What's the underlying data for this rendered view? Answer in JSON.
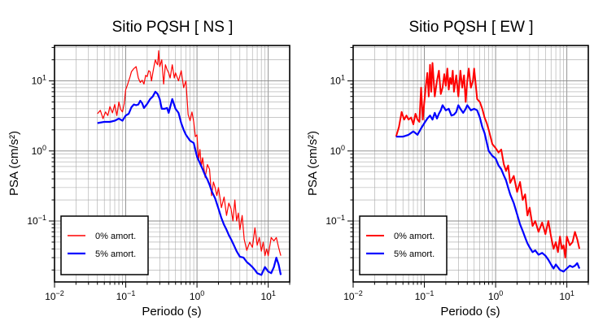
{
  "chart_data": [
    {
      "type": "line",
      "title": "Sitio PQSH [ NS ]",
      "xlabel": "Periodo (s)",
      "ylabel": "PSA (cm/s²)",
      "xscale": "log",
      "yscale": "log",
      "xlim": [
        0.01,
        20
      ],
      "ylim": [
        0.0135,
        32
      ],
      "x_ticks": [
        {
          "value": 0.01,
          "base": "10",
          "exp": "−2"
        },
        {
          "value": 0.1,
          "base": "10",
          "exp": "−1"
        },
        {
          "value": 1,
          "base": "10",
          "exp": "0"
        },
        {
          "value": 10,
          "base": "10",
          "exp": "1"
        }
      ],
      "y_ticks": [
        {
          "value": 0.1,
          "base": "10",
          "exp": "−1"
        },
        {
          "value": 1,
          "base": "10",
          "exp": "0"
        },
        {
          "value": 10,
          "base": "10",
          "exp": "1"
        }
      ],
      "grid": true,
      "legend_position": "bottom-left",
      "series": [
        {
          "name": "0% amort.",
          "color": "#ff0000",
          "width": 1.2,
          "x": [
            0.04,
            0.044,
            0.048,
            0.052,
            0.056,
            0.06,
            0.065,
            0.07,
            0.075,
            0.08,
            0.085,
            0.09,
            0.095,
            0.1,
            0.105,
            0.11,
            0.115,
            0.12,
            0.13,
            0.14,
            0.15,
            0.16,
            0.17,
            0.18,
            0.19,
            0.2,
            0.21,
            0.22,
            0.23,
            0.24,
            0.25,
            0.26,
            0.27,
            0.28,
            0.29,
            0.3,
            0.32,
            0.34,
            0.36,
            0.38,
            0.4,
            0.42,
            0.45,
            0.48,
            0.5,
            0.55,
            0.6,
            0.65,
            0.7,
            0.75,
            0.8,
            0.85,
            0.9,
            0.95,
            1.0,
            1.05,
            1.1,
            1.15,
            1.2,
            1.3,
            1.4,
            1.5,
            1.6,
            1.7,
            1.8,
            1.9,
            2.0,
            2.2,
            2.4,
            2.6,
            2.8,
            3.0,
            3.2,
            3.4,
            3.6,
            3.8,
            4.0,
            4.3,
            4.6,
            5.0,
            5.5,
            6.0,
            6.5,
            7.0,
            7.5,
            8.0,
            8.5,
            9.0,
            9.5,
            10,
            11,
            12,
            13,
            14,
            15
          ],
          "y": [
            3.4,
            3.8,
            2.9,
            3.6,
            3.2,
            4.3,
            3.5,
            4.6,
            3.2,
            5.0,
            3.9,
            3.6,
            4.7,
            7.5,
            8.6,
            10.0,
            11.5,
            13.5,
            15.0,
            16.0,
            11.0,
            9.5,
            10.2,
            9.0,
            12.0,
            11.5,
            14.0,
            13.5,
            10.0,
            13.0,
            16.5,
            20.0,
            18.0,
            17.0,
            27.0,
            16.0,
            20.0,
            9.0,
            17.0,
            14.5,
            13.0,
            11.0,
            17.0,
            11.0,
            13.0,
            10.0,
            14.0,
            8.0,
            10.0,
            3.3,
            2.7,
            3.6,
            2.6,
            1.6,
            1.7,
            0.75,
            1.05,
            0.6,
            0.8,
            0.42,
            0.64,
            0.55,
            0.23,
            0.36,
            0.3,
            0.23,
            0.3,
            0.155,
            0.22,
            0.12,
            0.18,
            0.15,
            0.1,
            0.2,
            0.1,
            0.13,
            0.075,
            0.12,
            0.055,
            0.038,
            0.05,
            0.042,
            0.08,
            0.045,
            0.058,
            0.037,
            0.05,
            0.032,
            0.04,
            0.032,
            0.058,
            0.052,
            0.058,
            0.042,
            0.032
          ]
        },
        {
          "name": "5% amort.",
          "color": "#0000ff",
          "width": 2.2,
          "x": [
            0.04,
            0.05,
            0.06,
            0.07,
            0.08,
            0.09,
            0.1,
            0.11,
            0.12,
            0.13,
            0.14,
            0.15,
            0.16,
            0.17,
            0.18,
            0.2,
            0.22,
            0.24,
            0.26,
            0.28,
            0.3,
            0.32,
            0.35,
            0.38,
            0.4,
            0.45,
            0.5,
            0.55,
            0.6,
            0.65,
            0.7,
            0.8,
            0.9,
            1.0,
            1.1,
            1.2,
            1.3,
            1.4,
            1.5,
            1.6,
            1.8,
            2.0,
            2.2,
            2.4,
            2.6,
            2.8,
            3.0,
            3.3,
            3.6,
            4.0,
            4.5,
            5.0,
            5.5,
            6.0,
            6.5,
            7.0,
            8.0,
            9.0,
            10,
            11,
            12,
            13,
            14,
            15
          ],
          "y": [
            2.5,
            2.6,
            2.6,
            2.7,
            2.9,
            2.7,
            3.2,
            3.4,
            4.2,
            4.6,
            4.5,
            4.6,
            5.2,
            4.8,
            4.1,
            4.7,
            5.5,
            6.0,
            7.0,
            6.5,
            5.5,
            4.0,
            4.0,
            4.1,
            3.5,
            5.5,
            4.0,
            3.5,
            2.5,
            2.0,
            1.7,
            1.4,
            1.3,
            0.83,
            0.67,
            0.55,
            0.45,
            0.39,
            0.33,
            0.27,
            0.21,
            0.15,
            0.11,
            0.088,
            0.075,
            0.063,
            0.055,
            0.045,
            0.037,
            0.031,
            0.03,
            0.026,
            0.024,
            0.022,
            0.02,
            0.018,
            0.017,
            0.022,
            0.019,
            0.018,
            0.022,
            0.03,
            0.024,
            0.017
          ]
        }
      ]
    },
    {
      "type": "line",
      "title": "Sitio PQSH [ EW ]",
      "xlabel": "Periodo (s)",
      "ylabel": "PSA (cm/s²)",
      "xscale": "log",
      "yscale": "log",
      "xlim": [
        0.01,
        20
      ],
      "ylim": [
        0.0135,
        32
      ],
      "x_ticks": [
        {
          "value": 0.01,
          "base": "10",
          "exp": "−2"
        },
        {
          "value": 0.1,
          "base": "10",
          "exp": "−1"
        },
        {
          "value": 1,
          "base": "10",
          "exp": "0"
        },
        {
          "value": 10,
          "base": "10",
          "exp": "1"
        }
      ],
      "y_ticks": [
        {
          "value": 0.1,
          "base": "10",
          "exp": "−1"
        },
        {
          "value": 1,
          "base": "10",
          "exp": "0"
        },
        {
          "value": 10,
          "base": "10",
          "exp": "1"
        }
      ],
      "grid": true,
      "legend_position": "bottom-left",
      "series": [
        {
          "name": "0% amort.",
          "color": "#ff0000",
          "width": 2.0,
          "x": [
            0.04,
            0.044,
            0.048,
            0.052,
            0.056,
            0.06,
            0.065,
            0.07,
            0.075,
            0.08,
            0.085,
            0.09,
            0.095,
            0.1,
            0.105,
            0.11,
            0.115,
            0.12,
            0.125,
            0.13,
            0.14,
            0.15,
            0.16,
            0.17,
            0.18,
            0.19,
            0.2,
            0.21,
            0.22,
            0.23,
            0.24,
            0.25,
            0.26,
            0.28,
            0.3,
            0.32,
            0.34,
            0.36,
            0.38,
            0.4,
            0.42,
            0.45,
            0.48,
            0.5,
            0.55,
            0.6,
            0.65,
            0.7,
            0.75,
            0.8,
            0.9,
            1.0,
            1.1,
            1.2,
            1.3,
            1.4,
            1.5,
            1.6,
            1.8,
            2.0,
            2.2,
            2.4,
            2.6,
            2.8,
            3.0,
            3.3,
            3.6,
            4.0,
            4.5,
            5.0,
            5.5,
            6.0,
            6.5,
            7.0,
            7.5,
            8.0,
            8.5,
            9.0,
            9.5,
            10,
            11,
            12,
            13,
            14,
            15
          ],
          "y": [
            1.6,
            2.2,
            3.6,
            2.8,
            3.2,
            2.8,
            3.0,
            2.4,
            3.4,
            2.8,
            2.6,
            8.0,
            2.8,
            5.0,
            8.6,
            13.0,
            6.0,
            17.0,
            7.0,
            18.0,
            6.0,
            10.0,
            14.0,
            6.5,
            8.0,
            12.5,
            8.5,
            15.0,
            7.5,
            11.0,
            9.0,
            14.0,
            7.0,
            12.0,
            6.0,
            14.0,
            8.0,
            12.0,
            5.0,
            10.0,
            15.0,
            8.0,
            10.0,
            15.0,
            5.5,
            5.0,
            4.0,
            3.0,
            2.5,
            2.0,
            1.25,
            1.1,
            0.95,
            1.05,
            0.65,
            0.52,
            0.62,
            0.35,
            0.44,
            0.26,
            0.36,
            0.2,
            0.24,
            0.12,
            0.155,
            0.085,
            0.1,
            0.07,
            0.095,
            0.065,
            0.1,
            0.06,
            0.04,
            0.05,
            0.036,
            0.06,
            0.04,
            0.045,
            0.03,
            0.06,
            0.045,
            0.05,
            0.07,
            0.055,
            0.04
          ]
        },
        {
          "name": "5% amort.",
          "color": "#0000ff",
          "width": 2.2,
          "x": [
            0.04,
            0.05,
            0.06,
            0.07,
            0.08,
            0.09,
            0.1,
            0.11,
            0.12,
            0.13,
            0.14,
            0.15,
            0.16,
            0.17,
            0.18,
            0.2,
            0.22,
            0.24,
            0.26,
            0.28,
            0.3,
            0.32,
            0.35,
            0.38,
            0.4,
            0.45,
            0.5,
            0.55,
            0.6,
            0.65,
            0.7,
            0.8,
            0.9,
            1.0,
            1.1,
            1.2,
            1.3,
            1.4,
            1.5,
            1.6,
            1.8,
            2.0,
            2.2,
            2.4,
            2.6,
            2.8,
            3.0,
            3.3,
            3.6,
            4.0,
            4.5,
            5.0,
            5.5,
            6.0,
            6.5,
            7.0,
            8.0,
            9.0,
            10,
            11,
            12,
            13,
            14,
            15
          ],
          "y": [
            1.6,
            1.6,
            1.7,
            1.9,
            1.7,
            2.1,
            2.5,
            2.9,
            3.2,
            2.8,
            3.5,
            2.9,
            3.4,
            3.8,
            4.5,
            3.8,
            4.0,
            3.2,
            3.3,
            3.6,
            4.5,
            4.0,
            3.5,
            4.0,
            4.5,
            3.8,
            4.0,
            3.8,
            3.0,
            2.2,
            1.8,
            1.0,
            0.85,
            0.78,
            0.62,
            0.55,
            0.45,
            0.38,
            0.3,
            0.24,
            0.18,
            0.125,
            0.09,
            0.072,
            0.058,
            0.048,
            0.042,
            0.036,
            0.038,
            0.033,
            0.035,
            0.032,
            0.028,
            0.024,
            0.021,
            0.024,
            0.02,
            0.019,
            0.021,
            0.023,
            0.022,
            0.023,
            0.025,
            0.021
          ]
        }
      ]
    }
  ]
}
